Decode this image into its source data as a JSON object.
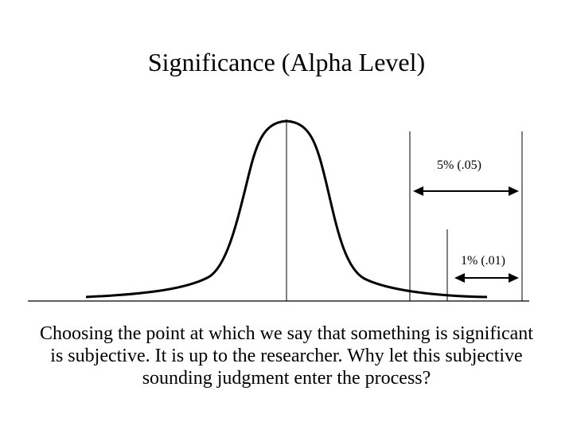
{
  "slide": {
    "title": "Significance (Alpha Level)",
    "caption": "Choosing the point at which we say that something is significant is subjective. It is up to the researcher. Why let this subjective sounding judgment enter the process?"
  },
  "figure": {
    "curve": "normal-distribution",
    "regions": [
      {
        "label": "5% (.05)"
      },
      {
        "label": "1% (.01)"
      }
    ]
  },
  "colors": {
    "background": "#ffffff",
    "ink": "#000000"
  }
}
